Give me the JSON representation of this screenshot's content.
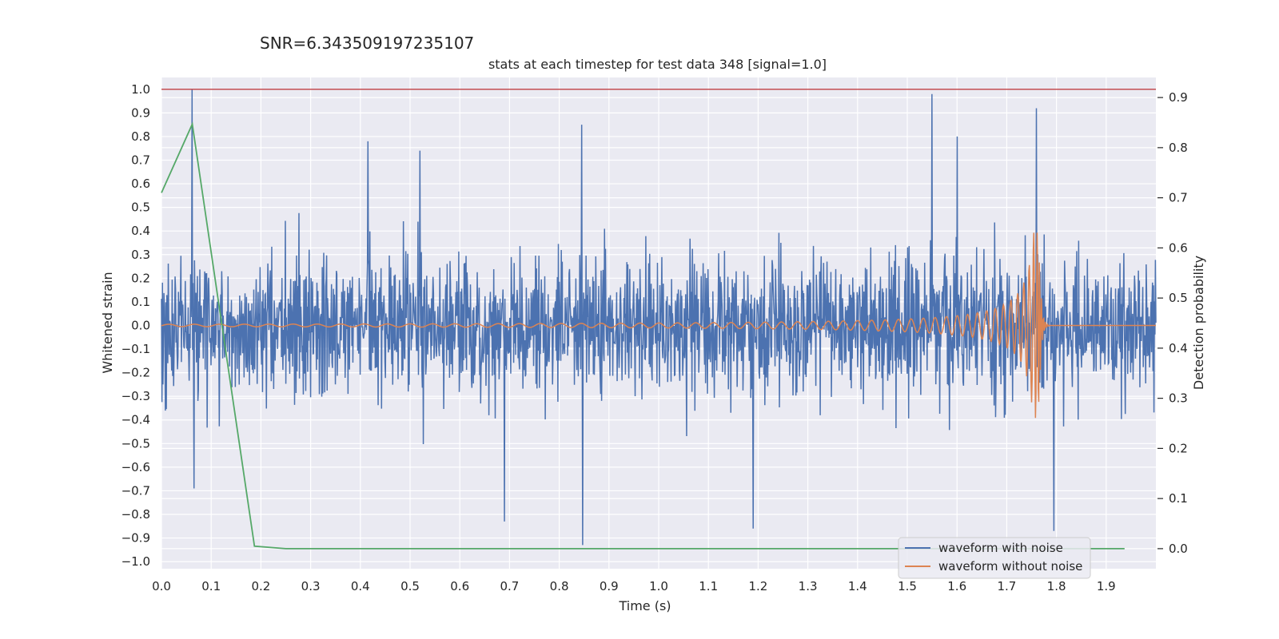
{
  "header": {
    "snr_label": "SNR=6.343509197235107",
    "title": "stats at each timestep for test data 348 [signal=1.0]"
  },
  "chart_data": {
    "type": "line",
    "title": "stats at each timestep for test data 348 [signal=1.0]",
    "xlabel": "Time (s)",
    "ylabel": "Whitened strain",
    "y2label": "Detection probability",
    "xlim": [
      0.0,
      2.0
    ],
    "ylim": [
      -1.03,
      1.05
    ],
    "y2lim": [
      -0.04,
      0.94
    ],
    "x_ticks": [
      "0.0",
      "0.1",
      "0.2",
      "0.3",
      "0.4",
      "0.5",
      "0.6",
      "0.7",
      "0.8",
      "0.9",
      "1.0",
      "1.1",
      "1.2",
      "1.3",
      "1.4",
      "1.5",
      "1.6",
      "1.7",
      "1.8",
      "1.9"
    ],
    "y_ticks": [
      "1.0",
      "0.9",
      "0.8",
      "0.7",
      "0.6",
      "0.5",
      "0.4",
      "0.3",
      "0.2",
      "0.1",
      "0.0",
      "−0.1",
      "−0.2",
      "−0.3",
      "−0.4",
      "−0.5",
      "−0.6",
      "−0.7",
      "−0.8",
      "−0.9",
      "−1.0"
    ],
    "y2_ticks": [
      "0.9",
      "0.8",
      "0.7",
      "0.6",
      "0.5",
      "0.4",
      "0.3",
      "0.2",
      "0.1",
      "0.0"
    ],
    "grid": true,
    "legend_position": "lower-right",
    "series": [
      {
        "name": "waveform with noise",
        "color": "#4c72b0",
        "axis": "left",
        "x_range": [
          0.0,
          2.0
        ],
        "amplitude_typical": 0.35,
        "peaks": [
          {
            "x": 0.062,
            "y": 1.0
          },
          {
            "x": 0.065,
            "y": -0.69
          },
          {
            "x": 0.415,
            "y": 0.78
          },
          {
            "x": 0.52,
            "y": 0.74
          },
          {
            "x": 0.69,
            "y": -0.83
          },
          {
            "x": 0.845,
            "y": 0.85
          },
          {
            "x": 0.847,
            "y": -0.93
          },
          {
            "x": 1.19,
            "y": -0.86
          },
          {
            "x": 1.55,
            "y": 0.98
          },
          {
            "x": 1.6,
            "y": 0.8
          },
          {
            "x": 1.76,
            "y": 0.92
          },
          {
            "x": 1.795,
            "y": -0.87
          }
        ]
      },
      {
        "name": "waveform without noise",
        "color": "#dd8452",
        "axis": "left",
        "description_values": {
          "chirp_start": 0.0,
          "merger_time": 1.765,
          "start_amplitude": 0.005,
          "peak_amplitude": 0.4,
          "min_value": -0.39
        }
      },
      {
        "name": "",
        "color": "#55a868",
        "axis": "right",
        "x": [
          0.0,
          0.062,
          0.187,
          0.25,
          0.312,
          0.375,
          0.5,
          0.75,
          1.0,
          1.25,
          1.5,
          1.75,
          1.937
        ],
        "y": [
          0.71,
          0.847,
          0.005,
          0.0,
          0.0,
          0.0,
          0.0,
          0.0,
          0.0,
          0.0,
          0.0,
          0.0,
          0.0
        ]
      }
    ],
    "hline": {
      "axis": "left",
      "y": 1.0,
      "color": "#c44e52"
    }
  }
}
